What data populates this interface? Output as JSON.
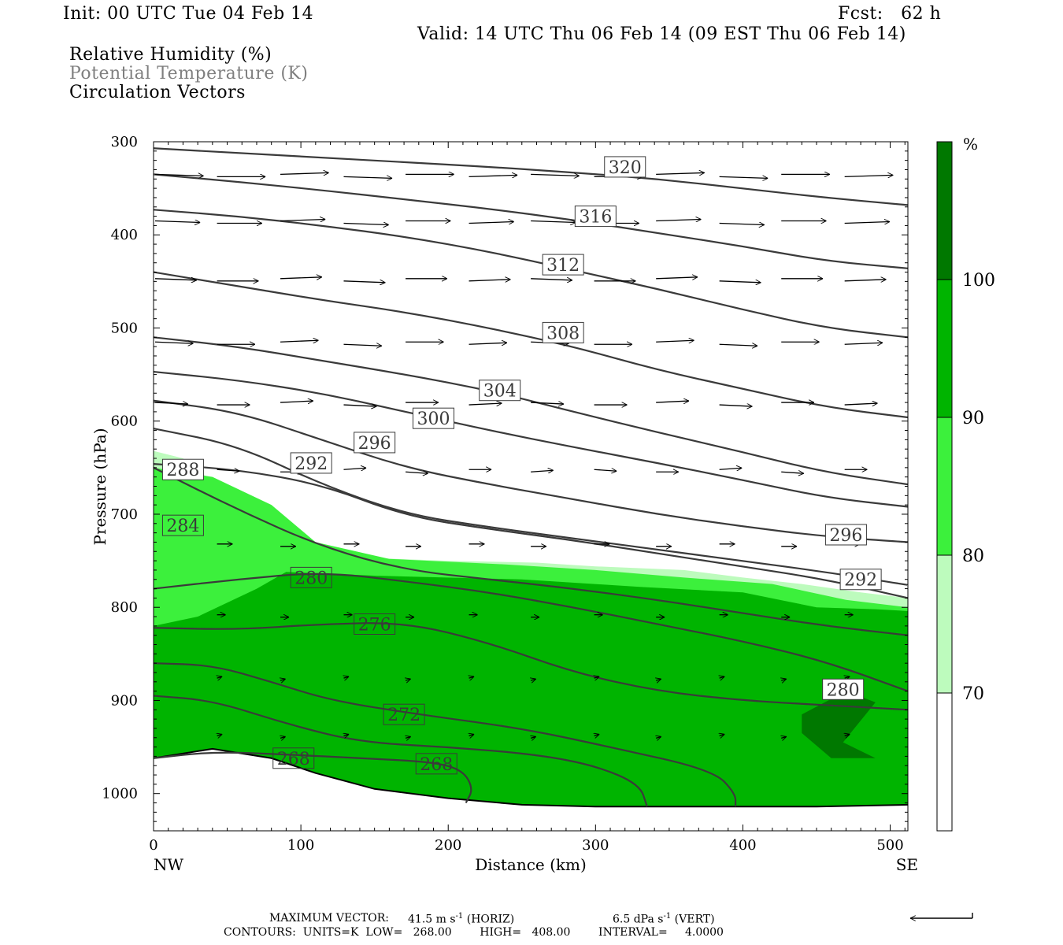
{
  "header": {
    "init": "Init: 00 UTC Tue 04 Feb 14",
    "fcst": "Fcst:   62 h",
    "valid": "Valid: 14 UTC Thu 06 Feb 14 (09 EST Thu 06 Feb 14)"
  },
  "fields": [
    {
      "label": "Relative Humidity (%)",
      "color": "#000000"
    },
    {
      "label": "Potential Temperature (K)",
      "color": "#7f7f7f"
    },
    {
      "label": "Circulation Vectors",
      "color": "#000000"
    }
  ],
  "chart_data": {
    "type": "cross-section",
    "xlabel": "Distance (km)",
    "ylabel": "Pressure (hPa)",
    "xlim": [
      0,
      512
    ],
    "ylim": [
      300,
      1040
    ],
    "x_ticks": [
      0,
      100,
      200,
      300,
      400,
      500
    ],
    "y_ticks": [
      300,
      400,
      500,
      600,
      700,
      800,
      900,
      1000
    ],
    "x_end_labels": {
      "left": "NW",
      "right": "SE"
    },
    "colorbar": {
      "unit": "%",
      "levels": [
        70,
        80,
        90,
        100
      ],
      "colors": [
        "#ffffff",
        "#bdfbbd",
        "#3cf03c",
        "#00b400",
        "#007800"
      ]
    },
    "rh_fill": {
      "80": [
        [
          0,
          632
        ],
        [
          20,
          640
        ],
        [
          60,
          690
        ],
        [
          90,
          722
        ],
        [
          130,
          746
        ],
        [
          200,
          750
        ],
        [
          260,
          752
        ],
        [
          300,
          756
        ],
        [
          360,
          760
        ],
        [
          400,
          768
        ],
        [
          440,
          775
        ],
        [
          480,
          784
        ],
        [
          512,
          790
        ],
        [
          512,
          1040
        ],
        [
          0,
          1040
        ]
      ],
      "90": [
        [
          0,
          650
        ],
        [
          40,
          660
        ],
        [
          80,
          690
        ],
        [
          110,
          730
        ],
        [
          160,
          748
        ],
        [
          240,
          754
        ],
        [
          300,
          760
        ],
        [
          360,
          768
        ],
        [
          420,
          775
        ],
        [
          470,
          792
        ],
        [
          512,
          800
        ],
        [
          512,
          1040
        ],
        [
          0,
          1040
        ]
      ],
      "100": [
        [
          0,
          820
        ],
        [
          30,
          810
        ],
        [
          70,
          780
        ],
        [
          90,
          762
        ],
        [
          150,
          766
        ],
        [
          250,
          770
        ],
        [
          330,
          778
        ],
        [
          400,
          784
        ],
        [
          450,
          800
        ],
        [
          490,
          802
        ],
        [
          512,
          804
        ],
        [
          512,
          1040
        ],
        [
          0,
          1040
        ]
      ],
      "dark": [
        [
          440,
          915
        ],
        [
          470,
          890
        ],
        [
          490,
          902
        ],
        [
          468,
          945
        ],
        [
          490,
          962
        ],
        [
          460,
          962
        ],
        [
          440,
          935
        ]
      ]
    },
    "theta_contours": [
      {
        "value": 320,
        "p": [
          307,
          312,
          317,
          322,
          327,
          333,
          340,
          350,
          360,
          368
        ]
      },
      {
        "value": 316,
        "p": [
          335,
          343,
          352,
          362,
          372,
          384,
          398,
          412,
          428,
          436
        ]
      },
      {
        "value": 312,
        "p": [
          373,
          380,
          390,
          402,
          418,
          438,
          458,
          480,
          500,
          510
        ]
      },
      {
        "value": 308,
        "p": [
          440,
          455,
          470,
          483,
          500,
          520,
          545,
          565,
          585,
          596
        ]
      },
      {
        "value": 304,
        "p": [
          510,
          520,
          535,
          550,
          567,
          590,
          612,
          633,
          655,
          668
        ]
      },
      {
        "value": 300,
        "p": [
          547,
          556,
          570,
          590,
          610,
          628,
          645,
          663,
          682,
          692
        ]
      },
      {
        "value": 296,
        "p": [
          578,
          590,
          620,
          650,
          668,
          684,
          700,
          713,
          724,
          730
        ]
      },
      {
        "value": 292,
        "p": [
          608,
          626,
          668,
          700,
          714,
          726,
          738,
          750,
          762,
          776
        ]
      },
      {
        "value": 288,
        "p": [
          646,
          652,
          668,
          702,
          716,
          728,
          742,
          756,
          770,
          790
        ]
      }
    ],
    "theta_contours_low": [
      {
        "value": 284,
        "p": [
          650,
          695,
          735,
          760,
          770,
          780,
          792,
          806,
          820,
          830
        ]
      },
      {
        "value": 280,
        "p": [
          780,
          770,
          762,
          772,
          784,
          800,
          818,
          836,
          858,
          890
        ]
      },
      {
        "value": 276,
        "p": [
          822,
          824,
          818,
          816,
          838,
          870,
          890,
          900,
          905,
          910
        ]
      }
    ],
    "theta_labels": [
      {
        "value": "320",
        "x": 320,
        "p": 327
      },
      {
        "value": "316",
        "x": 300,
        "p": 380
      },
      {
        "value": "312",
        "x": 278,
        "p": 432
      },
      {
        "value": "308",
        "x": 278,
        "p": 505
      },
      {
        "value": "304",
        "x": 235,
        "p": 567
      },
      {
        "value": "300",
        "x": 190,
        "p": 597
      },
      {
        "value": "296",
        "x": 150,
        "p": 623
      },
      {
        "value": "292",
        "x": 107,
        "p": 645
      },
      {
        "value": "288",
        "x": 20,
        "p": 652
      },
      {
        "value": "284",
        "x": 20,
        "p": 712
      },
      {
        "value": "280",
        "x": 107,
        "p": 768
      },
      {
        "value": "276",
        "x": 150,
        "p": 818
      },
      {
        "value": "272",
        "x": 170,
        "p": 915
      },
      {
        "value": "268",
        "x": 95,
        "p": 962
      },
      {
        "value": "268",
        "x": 192,
        "p": 968
      },
      {
        "value": "296",
        "x": 470,
        "p": 722
      },
      {
        "value": "292",
        "x": 480,
        "p": 770
      },
      {
        "value": "280",
        "x": 468,
        "p": 888
      }
    ],
    "vectors": [
      {
        "p": 335,
        "xs": [
          0,
          42,
          85,
          128,
          170,
          213,
          255,
          298,
          340,
          383,
          425,
          468
        ],
        "len": 28
      },
      {
        "p": 385,
        "xs": [
          0,
          42,
          85,
          128,
          170,
          213,
          255,
          298,
          340,
          383,
          425,
          468
        ],
        "len": 26
      },
      {
        "p": 447,
        "xs": [
          0,
          42,
          85,
          128,
          170,
          213,
          255,
          298,
          340,
          383,
          425,
          468
        ],
        "len": 24
      },
      {
        "p": 515,
        "xs": [
          0,
          42,
          85,
          128,
          170,
          213,
          255,
          298,
          340,
          383,
          425,
          468
        ],
        "len": 22
      },
      {
        "p": 580,
        "xs": [
          0,
          42,
          85,
          128,
          170,
          213,
          255,
          298,
          340,
          383,
          425,
          468
        ],
        "len": 19
      },
      {
        "p": 652,
        "xs": [
          42,
          85,
          128,
          170,
          213,
          255,
          298,
          340,
          383,
          425,
          468
        ],
        "len": 13
      },
      {
        "p": 732,
        "xs": [
          42,
          85,
          128,
          170,
          213,
          255,
          298,
          340,
          383,
          425,
          468
        ],
        "len": 9
      },
      {
        "p": 808,
        "xs": [
          42,
          85,
          128,
          170,
          213,
          255,
          298,
          340,
          383,
          425,
          468
        ],
        "len": 5
      },
      {
        "p": 876,
        "xs": [
          42,
          85,
          128,
          170,
          213,
          255,
          298,
          340,
          383,
          425,
          468
        ],
        "len": 3
      },
      {
        "p": 938,
        "xs": [
          42,
          85,
          128,
          170,
          213,
          255,
          298,
          340,
          383,
          425,
          468
        ],
        "len": 3
      }
    ]
  },
  "footer": {
    "max_vector_label": "MAXIMUM VECTOR:",
    "horiz_value": "41.5 m s",
    "horiz_exp": "-1",
    "horiz_tag": "(HORIZ)",
    "vert_value": "6.5 dPa s",
    "vert_exp": "-1",
    "vert_tag": "(VERT)",
    "contours": "CONTOURS:  UNITS=K  LOW=   268.00        HIGH=   408.00        INTERVAL=     4.0000"
  }
}
